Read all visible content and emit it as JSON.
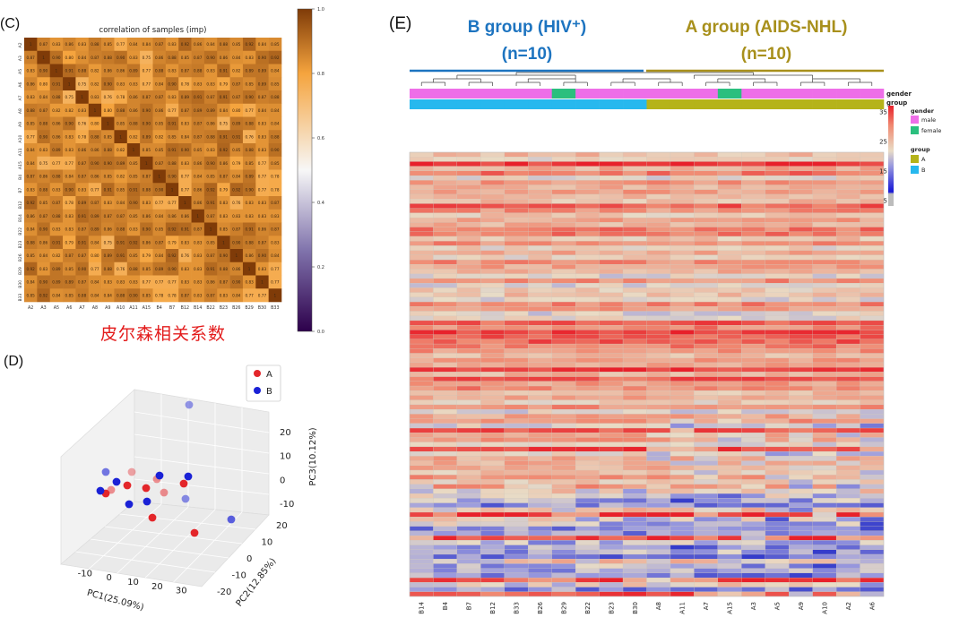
{
  "panel_labels": {
    "c": "(C)",
    "d": "(D)",
    "e": "(E)"
  },
  "caption_cn": "皮尔森相关系数",
  "group_headers": {
    "b_line1": "B group (HIV⁺)",
    "b_line2": "(n=10)",
    "a_line1": "A group (AIDS-NHL)",
    "a_line2": "(n=10)"
  },
  "colors": {
    "group_b": "#1d74c0",
    "group_a": "#a8901c",
    "caption": "#e31b1b",
    "gender_male": "#ee6ee8",
    "gender_female": "#2bbf7e",
    "group_bar_a": "#b5b31a",
    "group_bar_b": "#27b8ee"
  },
  "chart_data": [
    {
      "type": "heatmap",
      "title": "correlation of samples (imp)",
      "samples": [
        "A2",
        "A3",
        "A5",
        "A6",
        "A7",
        "A8",
        "A9",
        "A10",
        "A11",
        "A15",
        "B4",
        "B7",
        "B12",
        "B14",
        "B22",
        "B23",
        "B26",
        "B29",
        "B30",
        "B33"
      ],
      "values_range": [
        0.75,
        1.0
      ],
      "diagonal": 1,
      "colorbar_ticks": [
        "0.0",
        "0.2",
        "0.4",
        "0.6",
        "0.8",
        "1.0"
      ],
      "colorbar_range": [
        0.0,
        1.0
      ]
    },
    {
      "type": "scatter",
      "projection": "3d",
      "xlabel": "PC1(25.09%)",
      "ylabel": "PC2(12.85%)",
      "zlabel": "PC3(10.12%)",
      "xticks": [
        -10,
        0,
        10,
        20,
        30
      ],
      "yticks": [
        -20,
        -10,
        0,
        10,
        20
      ],
      "zticks": [
        -10,
        0,
        10,
        20
      ],
      "legend": [
        {
          "label": "A",
          "color": "#e3262a"
        },
        {
          "label": "B",
          "color": "#1a21d6"
        }
      ],
      "legend_position": "top-right"
    },
    {
      "type": "heatmap",
      "columns": [
        "B14",
        "B4",
        "B7",
        "B12",
        "B33",
        "B26",
        "B29",
        "B22",
        "B23",
        "B30",
        "A8",
        "A11",
        "A7",
        "A15",
        "A3",
        "A5",
        "A9",
        "A10",
        "A2",
        "A6"
      ],
      "annotation_tracks": [
        "gender",
        "group"
      ],
      "legend": {
        "gender": [
          "male",
          "female"
        ],
        "group": [
          "A",
          "B"
        ]
      },
      "gender_per_column": [
        "male",
        "male",
        "male",
        "male",
        "male",
        "male",
        "female",
        "male",
        "male",
        "male",
        "male",
        "male",
        "male",
        "female",
        "male",
        "male",
        "male",
        "male",
        "male",
        "male"
      ],
      "group_per_column": [
        "B",
        "B",
        "B",
        "B",
        "B",
        "B",
        "B",
        "B",
        "B",
        "B",
        "A",
        "A",
        "A",
        "A",
        "A",
        "A",
        "A",
        "A",
        "A",
        "A"
      ],
      "colorbar_ticks": [
        5,
        15,
        25,
        35
      ],
      "colorbar_range": [
        5,
        35
      ],
      "n_rows": 95
    }
  ]
}
